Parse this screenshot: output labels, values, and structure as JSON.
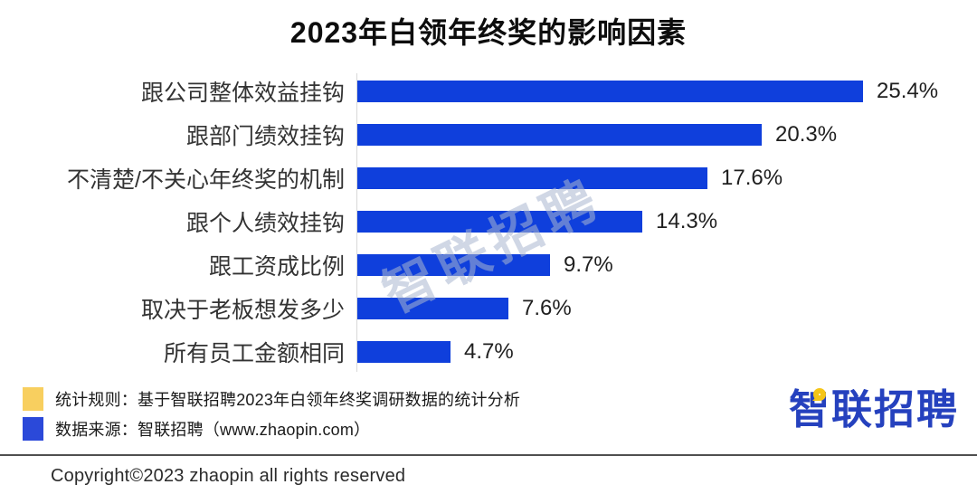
{
  "title": "2023年白领年终奖的影响因素",
  "chart_data": {
    "type": "bar",
    "orientation": "horizontal",
    "title": "2023年白领年终奖的影响因素",
    "categories": [
      "跟公司整体效益挂钩",
      "跟部门绩效挂钩",
      "不清楚/不关心年终奖的机制",
      "跟个人绩效挂钩",
      "跟工资成比例",
      "取决于老板想发多少",
      "所有员工金额相同"
    ],
    "values": [
      25.4,
      20.3,
      17.6,
      14.3,
      9.7,
      7.6,
      4.7
    ],
    "value_labels": [
      "25.4%",
      "20.3%",
      "17.6%",
      "14.3%",
      "9.7%",
      "7.6%",
      "4.7%"
    ],
    "xlabel": "",
    "ylabel": "",
    "xlim": [
      0,
      26
    ],
    "grid": false,
    "legend_position": "none",
    "bar_color": "#0F3FDC"
  },
  "watermark": "智联招聘",
  "notes": [
    {
      "swatch_color": "#F8CF5F",
      "text": "统计规则：基于智联招聘2023年白领年终奖调研数据的统计分析"
    },
    {
      "swatch_color": "#2B49D9",
      "text": "数据来源：智联招聘（www.zhaopin.com）"
    }
  ],
  "logo": {
    "text": "智联招聘",
    "color": "#2541BE",
    "accent_color": "#F5C517"
  },
  "copyright": "Copyright©2023 zhaopin all rights reserved"
}
